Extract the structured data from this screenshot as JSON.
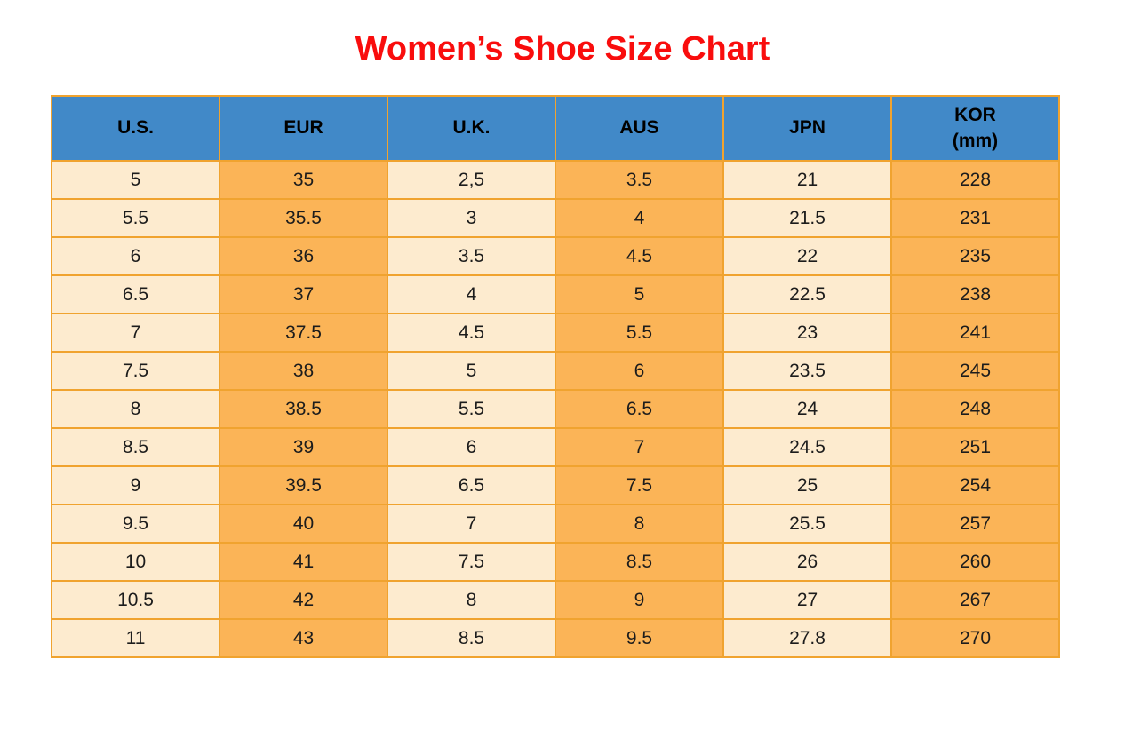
{
  "page": {
    "title": "Women’s Shoe Size Chart"
  },
  "colors": {
    "title_red": "#f90d0d",
    "header_blue": "#4189c8",
    "cell_cream": "#fdebcf",
    "cell_orange": "#fbb457",
    "grid_orange": "#f0a32f",
    "text_dark": "#1c1c1c"
  },
  "chart_data": {
    "type": "table",
    "title": "Women’s Shoe Size Chart",
    "columns": [
      "U.S.",
      "EUR",
      "U.K.",
      "AUS",
      "JPN",
      "KOR (mm)"
    ],
    "header_display": [
      "U.S.",
      "EUR",
      "U.K.",
      "AUS",
      "JPN",
      "KOR\n(mm)"
    ],
    "column_styles": [
      "cream",
      "orange",
      "cream",
      "orange",
      "cream",
      "orange"
    ],
    "rows": [
      [
        "5",
        "35",
        "2,5",
        "3.5",
        "21",
        "228"
      ],
      [
        "5.5",
        "35.5",
        "3",
        "4",
        "21.5",
        "231"
      ],
      [
        "6",
        "36",
        "3.5",
        "4.5",
        "22",
        "235"
      ],
      [
        "6.5",
        "37",
        "4",
        "5",
        "22.5",
        "238"
      ],
      [
        "7",
        "37.5",
        "4.5",
        "5.5",
        "23",
        "241"
      ],
      [
        "7.5",
        "38",
        "5",
        "6",
        "23.5",
        "245"
      ],
      [
        "8",
        "38.5",
        "5.5",
        "6.5",
        "24",
        "248"
      ],
      [
        "8.5",
        "39",
        "6",
        "7",
        "24.5",
        "251"
      ],
      [
        "9",
        "39.5",
        "6.5",
        "7.5",
        "25",
        "254"
      ],
      [
        "9.5",
        "40",
        "7",
        "8",
        "25.5",
        "257"
      ],
      [
        "10",
        "41",
        "7.5",
        "8.5",
        "26",
        "260"
      ],
      [
        "10.5",
        "42",
        "8",
        "9",
        "27",
        "267"
      ],
      [
        "11",
        "43",
        "8.5",
        "9.5",
        "27.8",
        "270"
      ]
    ]
  }
}
